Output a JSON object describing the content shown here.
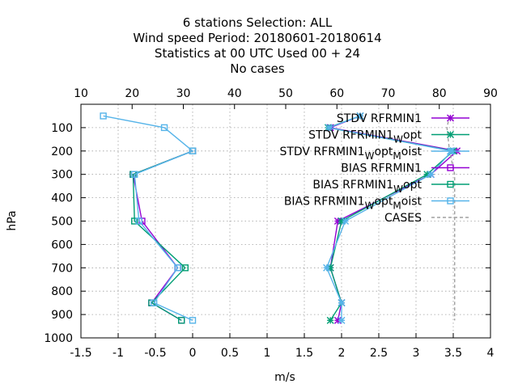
{
  "chart_data": {
    "type": "line",
    "title_lines": [
      "6 stations Selection: ALL",
      "Wind speed  Period: 20180601-20180614",
      "Statistics at 00 UTC  Used  00 + 24",
      "No cases"
    ],
    "xlabel": "m/s",
    "ylabel": "hPa",
    "xlim": [
      -1.5,
      4
    ],
    "ylim": [
      1000,
      0
    ],
    "x2lim": [
      10,
      90
    ],
    "grid": true,
    "x_ticks": [
      "-1.5",
      "-1",
      "-0.5",
      "0",
      "0.5",
      "1",
      "1.5",
      "2",
      "2.5",
      "3",
      "3.5",
      "4"
    ],
    "x2_ticks": [
      "10",
      "20",
      "30",
      "40",
      "50",
      "60",
      "70",
      "80",
      "90"
    ],
    "y_ticks": [
      "100",
      "200",
      "300",
      "400",
      "500",
      "600",
      "700",
      "800",
      "900",
      "1000"
    ],
    "legend_position": "top-right",
    "series": [
      {
        "name": "STDV RFRMIN1",
        "label_parts": [
          {
            "t": "STDV RFRMIN1"
          }
        ],
        "color": "#9400d3",
        "marker": "star",
        "dashed": false,
        "points": [
          [
            2.25,
            50
          ],
          [
            1.85,
            100
          ],
          [
            3.55,
            200
          ],
          [
            3.2,
            300
          ],
          [
            1.95,
            500
          ],
          [
            1.85,
            700
          ],
          [
            2.0,
            850
          ],
          [
            1.95,
            925
          ]
        ]
      },
      {
        "name": "STDV RFRMIN1_W opt",
        "label_parts": [
          {
            "t": "STDV RFRMIN1"
          },
          {
            "t": "W",
            "sub": true
          },
          {
            "t": "opt"
          }
        ],
        "color": "#009e73",
        "marker": "star",
        "dashed": false,
        "points": [
          [
            2.25,
            50
          ],
          [
            1.82,
            100
          ],
          [
            3.5,
            200
          ],
          [
            3.15,
            300
          ],
          [
            2.0,
            500
          ],
          [
            1.85,
            700
          ],
          [
            2.0,
            850
          ],
          [
            1.85,
            925
          ]
        ]
      },
      {
        "name": "STDV RFRMIN1_W opt_M oist",
        "label_parts": [
          {
            "t": "STDV RFRMIN1"
          },
          {
            "t": "W",
            "sub": true
          },
          {
            "t": "opt"
          },
          {
            "t": "M",
            "sub": true
          },
          {
            "t": "oist"
          }
        ],
        "color": "#56b4e9",
        "marker": "star",
        "dashed": false,
        "points": [
          [
            2.25,
            50
          ],
          [
            1.83,
            100
          ],
          [
            3.48,
            200
          ],
          [
            3.2,
            300
          ],
          [
            2.05,
            500
          ],
          [
            1.8,
            700
          ],
          [
            2.0,
            850
          ],
          [
            2.0,
            925
          ]
        ]
      },
      {
        "name": "BIAS RFRMIN1",
        "label_parts": [
          {
            "t": "BIAS RFRMIN1"
          }
        ],
        "color": "#9400d3",
        "marker": "square",
        "dashed": false,
        "points": [
          [
            0.0,
            200
          ],
          [
            -0.8,
            300
          ],
          [
            -0.68,
            500
          ],
          [
            -0.2,
            700
          ],
          [
            -0.55,
            850
          ],
          [
            -0.15,
            925
          ]
        ]
      },
      {
        "name": "BIAS RFRMIN1_W opt",
        "label_parts": [
          {
            "t": "BIAS RFRMIN1"
          },
          {
            "t": "W",
            "sub": true
          },
          {
            "t": "opt"
          }
        ],
        "color": "#009e73",
        "marker": "square",
        "dashed": false,
        "points": [
          [
            0.0,
            200
          ],
          [
            -0.8,
            300
          ],
          [
            -0.78,
            500
          ],
          [
            -0.1,
            700
          ],
          [
            -0.55,
            850
          ],
          [
            -0.15,
            925
          ]
        ]
      },
      {
        "name": "BIAS RFRMIN1_W opt_M oist",
        "label_parts": [
          {
            "t": "BIAS RFRMIN1"
          },
          {
            "t": "W",
            "sub": true
          },
          {
            "t": "opt"
          },
          {
            "t": "M",
            "sub": true
          },
          {
            "t": "oist"
          }
        ],
        "color": "#56b4e9",
        "marker": "square",
        "dashed": false,
        "points": [
          [
            -1.2,
            50
          ],
          [
            -0.38,
            100
          ],
          [
            0.0,
            200
          ],
          [
            -0.78,
            300
          ],
          [
            -0.72,
            500
          ],
          [
            -0.2,
            700
          ],
          [
            -0.52,
            850
          ],
          [
            0.0,
            925
          ]
        ]
      },
      {
        "name": "CASES",
        "label_parts": [
          {
            "t": "CASES"
          }
        ],
        "color": "#a0a0a0",
        "marker": "none",
        "dashed": true,
        "axis": "x2",
        "points": [
          [
            82,
            50
          ],
          [
            81.5,
            100
          ],
          [
            82,
            200
          ],
          [
            83,
            300
          ],
          [
            83,
            500
          ],
          [
            83,
            700
          ],
          [
            83,
            850
          ],
          [
            83,
            925
          ]
        ]
      }
    ]
  }
}
